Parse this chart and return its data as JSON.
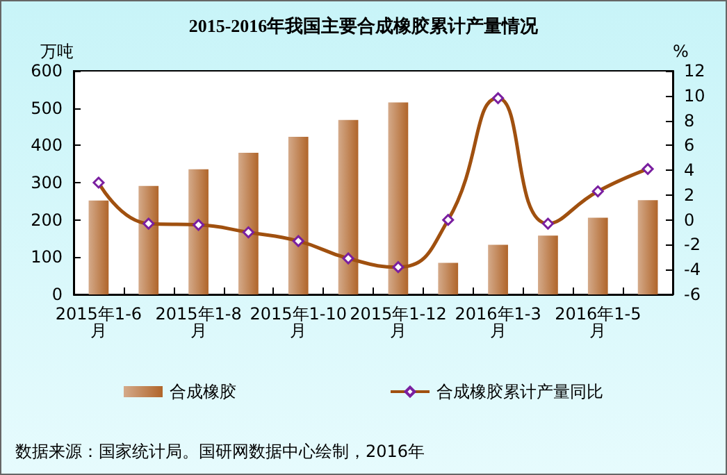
{
  "chart_data": {
    "type": "bar",
    "title": "2015-2016年我国主要合成橡胶累计产量情况",
    "ylabel": "万吨",
    "y2label": "%",
    "categories": [
      "2015年1-6月",
      null,
      "2015年1-8月",
      null,
      "2015年1-10月",
      null,
      "2015年1-12月",
      null,
      "2016年1-3月",
      null,
      "2016年1-5月",
      null
    ],
    "series": [
      {
        "name": "合成橡胶",
        "color": "#b0652a",
        "values": [
          252,
          291,
          336,
          380,
          423,
          468,
          515,
          85,
          133,
          158,
          206,
          253
        ]
      },
      {
        "name": "合成橡胶累计产量同比",
        "type": "line",
        "axis": "y2",
        "color": "#a0500f",
        "marker": "diamond",
        "values": [
          3.0,
          -0.3,
          -0.4,
          -1.0,
          -1.7,
          -3.1,
          -3.8,
          0.0,
          9.8,
          -0.3,
          2.3,
          4.1
        ]
      }
    ],
    "ylim": [
      0,
      600
    ],
    "yticks": [
      0,
      100,
      200,
      300,
      400,
      500,
      600
    ],
    "y2lim": [
      -6,
      12
    ],
    "y2ticks": [
      -6,
      -4,
      -2,
      0,
      2,
      4,
      6,
      8,
      10,
      12
    ],
    "grid": false,
    "legend": "bottom",
    "annotations": [
      "数据来源：国家统计局。国研网数据中心绘制，2016年"
    ]
  }
}
